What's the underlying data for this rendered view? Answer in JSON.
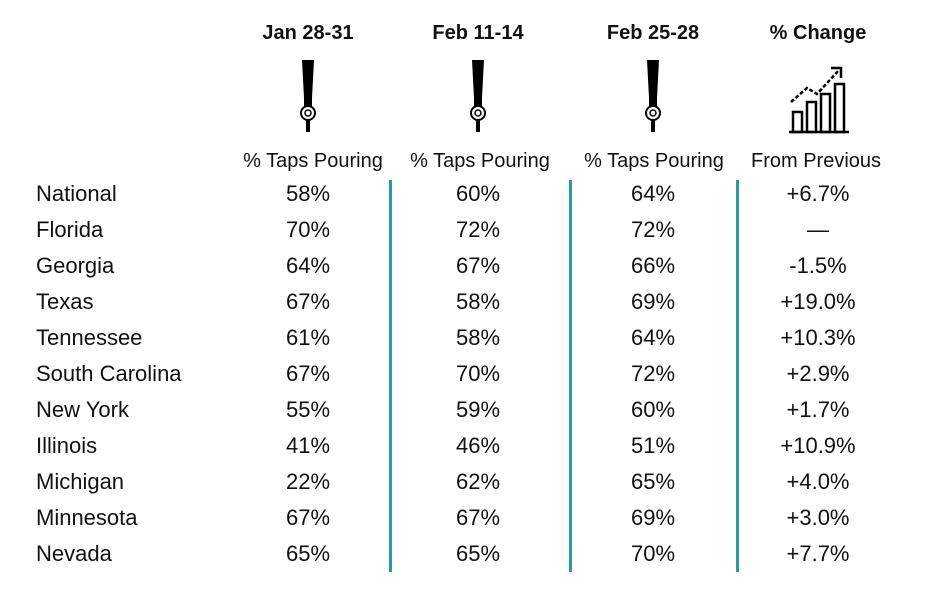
{
  "columns": [
    {
      "header": "Jan 28-31",
      "sub": "% Taps Pouring",
      "icon": "beer-tap-icon"
    },
    {
      "header": "Feb 11-14",
      "sub": "% Taps Pouring",
      "icon": "beer-tap-icon"
    },
    {
      "header": "Feb 25-28",
      "sub": "% Taps Pouring",
      "icon": "beer-tap-icon"
    },
    {
      "header": "% Change",
      "sub": "From Previous",
      "icon": "rising-bar-chart-icon"
    }
  ],
  "colors": {
    "divider": "#2a9aa8",
    "text": "#111111"
  },
  "chart_data": {
    "type": "table",
    "columns": [
      "Jan 28-31",
      "Feb 11-14",
      "Feb 25-28",
      "% Change"
    ],
    "rows": [
      {
        "label": "National",
        "values": [
          "58%",
          "60%",
          "64%",
          "+6.7%"
        ]
      },
      {
        "label": "Florida",
        "values": [
          "70%",
          "72%",
          "72%",
          "—"
        ]
      },
      {
        "label": "Georgia",
        "values": [
          "64%",
          "67%",
          "66%",
          "-1.5%"
        ]
      },
      {
        "label": "Texas",
        "values": [
          "67%",
          "58%",
          "69%",
          "+19.0%"
        ]
      },
      {
        "label": "Tennessee",
        "values": [
          "61%",
          "58%",
          "64%",
          "+10.3%"
        ]
      },
      {
        "label": "South Carolina",
        "values": [
          "67%",
          "70%",
          "72%",
          "+2.9%"
        ]
      },
      {
        "label": "New York",
        "values": [
          "55%",
          "59%",
          "60%",
          "+1.7%"
        ]
      },
      {
        "label": "Illinois",
        "values": [
          "41%",
          "46%",
          "51%",
          "+10.9%"
        ]
      },
      {
        "label": "Michigan",
        "values": [
          "22%",
          "62%",
          "65%",
          "+4.0%"
        ]
      },
      {
        "label": "Minnesota",
        "values": [
          "67%",
          "67%",
          "69%",
          "+3.0%"
        ]
      },
      {
        "label": "Nevada",
        "values": [
          "65%",
          "65%",
          "70%",
          "+7.7%"
        ]
      }
    ]
  }
}
